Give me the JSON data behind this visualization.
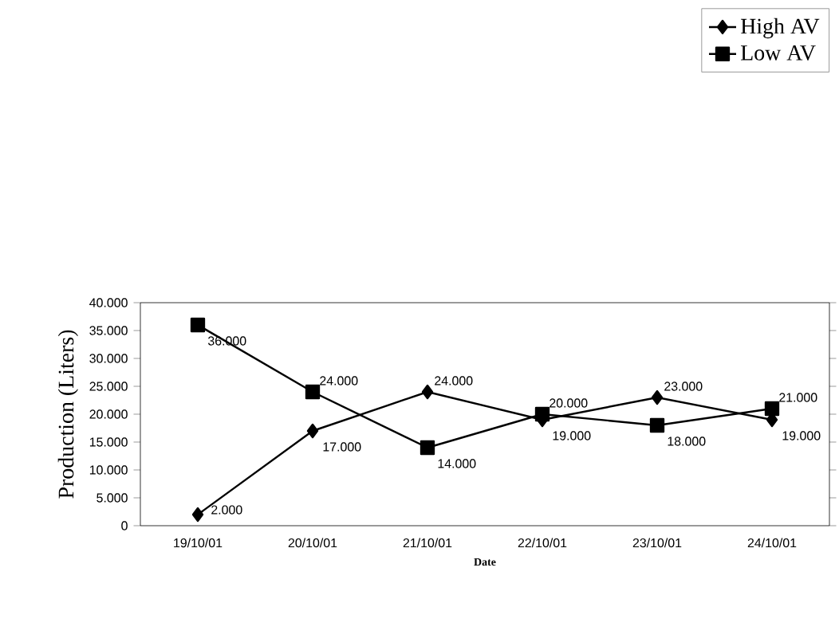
{
  "chart_data": {
    "type": "line",
    "xlabel": "Date",
    "ylabel": "Production  (Liters)",
    "categories": [
      "19/10/01",
      "20/10/01",
      "21/10/01",
      "22/10/01",
      "23/10/01",
      "24/10/01"
    ],
    "series": [
      {
        "name": "High AV",
        "color": "#000000",
        "marker": "diamond",
        "values": [
          2000,
          17000,
          24000,
          19000,
          23000,
          19000
        ],
        "value_labels": [
          "2.000",
          "17.000",
          "24.000",
          "19.000",
          "23.000",
          "19.000"
        ]
      },
      {
        "name": "Low AV",
        "color": "#000000",
        "marker": "square",
        "values": [
          36000,
          24000,
          14000,
          20000,
          18000,
          21000
        ],
        "value_labels": [
          "36.000",
          "24.000",
          "14.000",
          "20.000",
          "18.000",
          "21.000"
        ]
      }
    ],
    "ylim": [
      0,
      40000
    ],
    "yticks": [
      {
        "value": 0,
        "label": "0"
      },
      {
        "value": 5000,
        "label": "5.000"
      },
      {
        "value": 10000,
        "label": "10.000"
      },
      {
        "value": 15000,
        "label": "15.000"
      },
      {
        "value": 20000,
        "label": "20.000"
      },
      {
        "value": 25000,
        "label": "25.000"
      },
      {
        "value": 30000,
        "label": "30.000"
      },
      {
        "value": 35000,
        "label": "35.000"
      },
      {
        "value": 40000,
        "label": "40.000"
      }
    ],
    "grid": false,
    "legend": "top right",
    "line_style": "solid"
  }
}
